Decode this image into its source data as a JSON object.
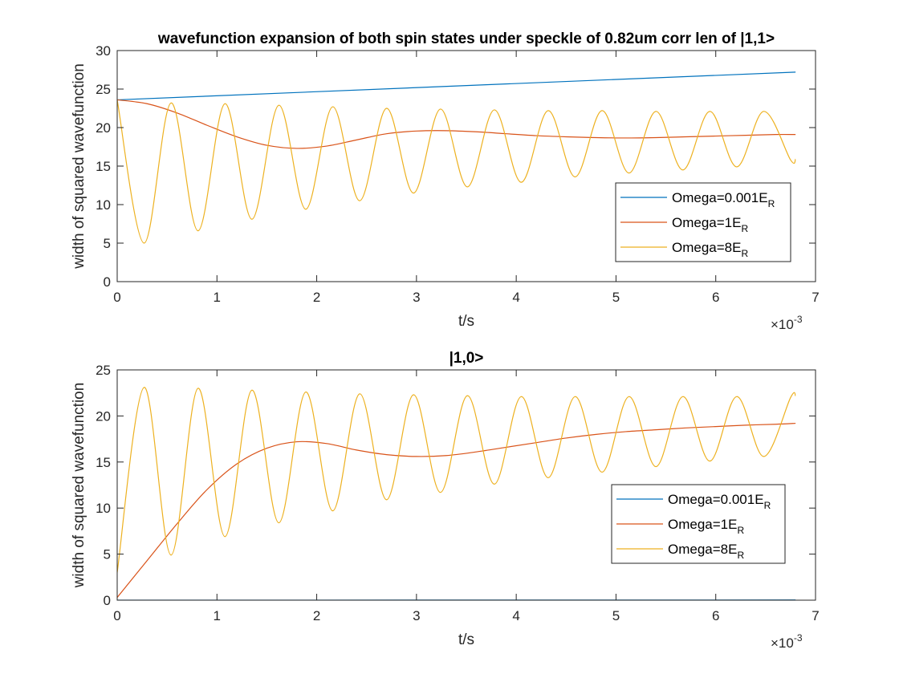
{
  "chart_data": [
    {
      "type": "line",
      "title": "wavefunction expansion of both spin states under speckle of 0.82um corr len of |1,1>",
      "xlabel": "t/s",
      "ylabel": "width of squared wavefunction",
      "x_exponent_label": "×10",
      "x_exponent": "-3",
      "xlim": [
        0,
        0.007
      ],
      "ylim": [
        0,
        30
      ],
      "xticks": [
        0,
        0.001,
        0.002,
        0.003,
        0.004,
        0.005,
        0.006,
        0.007
      ],
      "xtick_labels": [
        "0",
        "1",
        "2",
        "3",
        "4",
        "5",
        "6",
        "7"
      ],
      "yticks": [
        0,
        5,
        10,
        15,
        20,
        25,
        30
      ],
      "ytick_labels": [
        "0",
        "5",
        "10",
        "15",
        "20",
        "25",
        "30"
      ],
      "grid": false,
      "legend_position": "right",
      "series": [
        {
          "name_main": "Omega=0.001E",
          "name_sub": "R",
          "color": "#0072BD",
          "x": [
            0,
            0.0068
          ],
          "y": [
            23.6,
            27.2
          ]
        },
        {
          "name_main": "Omega=1E",
          "name_sub": "R",
          "color": "#D95319",
          "x": [
            0,
            0.0003,
            0.0006,
            0.0009,
            0.0012,
            0.0015,
            0.0018,
            0.0021,
            0.0024,
            0.0027,
            0.003,
            0.0033,
            0.0036,
            0.0039,
            0.0042,
            0.0045,
            0.0048,
            0.0051,
            0.0054,
            0.0057,
            0.006,
            0.0063,
            0.0066,
            0.0068
          ],
          "y": [
            23.6,
            23.1,
            21.9,
            20.3,
            18.8,
            17.7,
            17.3,
            17.6,
            18.4,
            19.2,
            19.55,
            19.6,
            19.45,
            19.2,
            18.95,
            18.8,
            18.7,
            18.65,
            18.7,
            18.8,
            18.9,
            19.0,
            19.1,
            19.1
          ]
        },
        {
          "name_main": "Omega=8E",
          "name_sub": "R",
          "color": "#EDB120",
          "x": [
            0,
            0.00027,
            0.00054,
            0.00081,
            0.00108,
            0.00135,
            0.00162,
            0.00189,
            0.00216,
            0.00243,
            0.0027,
            0.00297,
            0.00324,
            0.00351,
            0.00378,
            0.00405,
            0.00432,
            0.00459,
            0.00486,
            0.00513,
            0.0054,
            0.00567,
            0.00594,
            0.00621,
            0.00648,
            0.00675,
            0.0068
          ],
          "y": [
            23.6,
            5.0,
            23.2,
            6.6,
            23.1,
            8.1,
            22.9,
            9.4,
            22.7,
            10.5,
            22.5,
            11.5,
            22.4,
            12.3,
            22.3,
            12.9,
            22.2,
            13.6,
            22.2,
            14.1,
            22.1,
            14.5,
            22.1,
            14.9,
            22.1,
            15.8,
            15.9
          ]
        }
      ]
    },
    {
      "type": "line",
      "title": "|1,0>",
      "xlabel": "t/s",
      "ylabel": "width of squared wavefunction",
      "x_exponent_label": "×10",
      "x_exponent": "-3",
      "xlim": [
        0,
        0.007
      ],
      "ylim": [
        0,
        25
      ],
      "xticks": [
        0,
        0.001,
        0.002,
        0.003,
        0.004,
        0.005,
        0.006,
        0.007
      ],
      "xtick_labels": [
        "0",
        "1",
        "2",
        "3",
        "4",
        "5",
        "6",
        "7"
      ],
      "yticks": [
        0,
        5,
        10,
        15,
        20,
        25
      ],
      "ytick_labels": [
        "0",
        "5",
        "10",
        "15",
        "20",
        "25"
      ],
      "grid": false,
      "legend_position": "right",
      "series": [
        {
          "name_main": "Omega=0.001E",
          "name_sub": "R",
          "color": "#0072BD",
          "x": [
            0,
            0.0068
          ],
          "y": [
            0,
            0.02
          ]
        },
        {
          "name_main": "Omega=1E",
          "name_sub": "R",
          "color": "#D95319",
          "x": [
            0,
            0.0003,
            0.0006,
            0.0009,
            0.0012,
            0.0015,
            0.0018,
            0.0021,
            0.0024,
            0.0027,
            0.003,
            0.0033,
            0.0036,
            0.0039,
            0.0042,
            0.0045,
            0.0048,
            0.0051,
            0.0054,
            0.0057,
            0.006,
            0.0063,
            0.0066,
            0.0068
          ],
          "y": [
            0.3,
            4.3,
            8.3,
            12.0,
            14.8,
            16.5,
            17.2,
            17.0,
            16.3,
            15.8,
            15.6,
            15.7,
            16.1,
            16.6,
            17.1,
            17.6,
            18.0,
            18.3,
            18.5,
            18.7,
            18.85,
            19.0,
            19.1,
            19.2
          ]
        },
        {
          "name_main": "Omega=8E",
          "name_sub": "R",
          "color": "#EDB120",
          "x": [
            0,
            0.00027,
            0.00054,
            0.00081,
            0.00108,
            0.00135,
            0.00162,
            0.00189,
            0.00216,
            0.00243,
            0.0027,
            0.00297,
            0.00324,
            0.00351,
            0.00378,
            0.00405,
            0.00432,
            0.00459,
            0.00486,
            0.00513,
            0.0054,
            0.00567,
            0.00594,
            0.00621,
            0.00648,
            0.00675,
            0.0068
          ],
          "y": [
            3.0,
            23.1,
            4.9,
            23.0,
            6.9,
            22.8,
            8.4,
            22.6,
            9.7,
            22.4,
            10.9,
            22.3,
            11.7,
            22.2,
            12.6,
            22.1,
            13.3,
            22.1,
            13.9,
            22.1,
            14.5,
            22.1,
            15.1,
            22.1,
            15.6,
            22.0,
            22.2
          ]
        }
      ]
    }
  ]
}
